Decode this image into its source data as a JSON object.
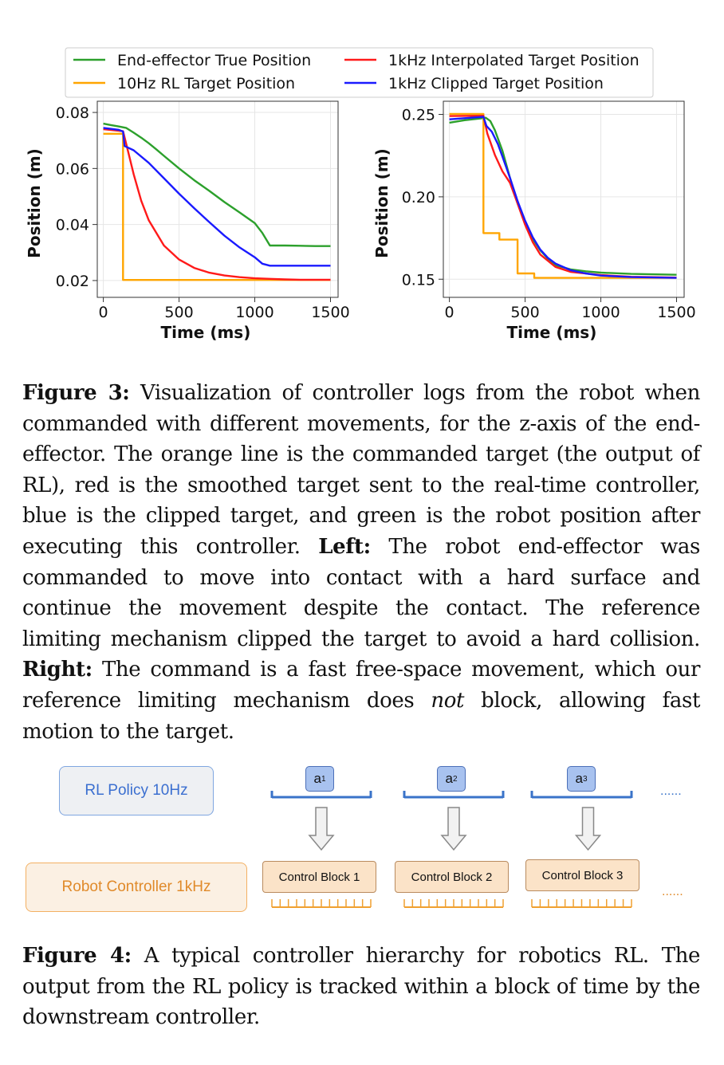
{
  "figure3": {
    "legend": [
      {
        "label": "End-effector True Position",
        "color": "#2ca02c"
      },
      {
        "label": "10Hz RL Target Position",
        "color": "#ffa500"
      },
      {
        "label": "1kHz Interpolated Target Position",
        "color": "#ff1a1a"
      },
      {
        "label": "1kHz Clipped Target Position",
        "color": "#1a1aff"
      }
    ],
    "caption": {
      "label": "Figure 3:",
      "text1": " Visualization of controller logs from the robot when commanded with different movements, for the z-axis of the end-effector. The orange line is the commanded target (the output of RL), red is the smoothed target sent to the real-time controller, blue is the clipped target, and green is the robot position after executing this controller. ",
      "left_label": "Left:",
      "text2": " The robot end-effector was commanded to move into contact with a hard surface and continue the movement despite the contact. The reference limiting mechanism clipped the target to avoid a hard collision. ",
      "right_label": "Right:",
      "text3": " The command is a fast free-space movement, which our reference limiting mechanism does ",
      "not": "not",
      "text4": " block, allowing fast motion to the target."
    }
  },
  "chart_data": [
    {
      "type": "line",
      "xlabel": "Time (ms)",
      "ylabel": "Position (m)",
      "xlim": [
        -40,
        1550
      ],
      "ylim": [
        0.014,
        0.084
      ],
      "xticks": [
        0,
        500,
        1000,
        1500
      ],
      "yticks": [
        0.02,
        0.04,
        0.06,
        0.08
      ],
      "ytick_labels": [
        "0.02",
        "0.04",
        "0.06",
        "0.08"
      ],
      "grid": true,
      "series": [
        {
          "name": "End-effector True Position",
          "color": "#2ca02c",
          "x": [
            0,
            50,
            100,
            150,
            200,
            250,
            300,
            350,
            400,
            500,
            600,
            700,
            800,
            900,
            1000,
            1050,
            1100,
            1200,
            1300,
            1400,
            1500
          ],
          "y": [
            0.076,
            0.0755,
            0.075,
            0.0745,
            0.0728,
            0.071,
            0.069,
            0.0668,
            0.0645,
            0.06,
            0.0558,
            0.052,
            0.048,
            0.0443,
            0.0405,
            0.037,
            0.0325,
            0.0325,
            0.0324,
            0.0323,
            0.0323
          ]
        },
        {
          "name": "10Hz RL Target Position",
          "color": "#ffa500",
          "x": [
            0,
            130,
            130,
            1500
          ],
          "y": [
            0.0724,
            0.0724,
            0.0202,
            0.0202
          ]
        },
        {
          "name": "1kHz Interpolated Target Position",
          "color": "#ff1a1a",
          "x": [
            0,
            130,
            150,
            200,
            250,
            300,
            400,
            500,
            600,
            700,
            800,
            900,
            1000,
            1100,
            1200,
            1300,
            1400,
            1500
          ],
          "y": [
            0.074,
            0.0733,
            0.069,
            0.058,
            0.0485,
            0.0415,
            0.0325,
            0.0275,
            0.0245,
            0.0228,
            0.0218,
            0.0212,
            0.0208,
            0.0206,
            0.0204,
            0.0203,
            0.0203,
            0.0203
          ]
        },
        {
          "name": "1kHz Clipped Target Position",
          "color": "#1a1aff",
          "x": [
            0,
            100,
            130,
            140,
            200,
            300,
            400,
            500,
            600,
            700,
            800,
            900,
            1000,
            1050,
            1100,
            1200,
            1300,
            1400,
            1500
          ],
          "y": [
            0.0745,
            0.0738,
            0.0732,
            0.068,
            0.0665,
            0.062,
            0.0565,
            0.051,
            0.0458,
            0.0408,
            0.036,
            0.0318,
            0.0283,
            0.026,
            0.0253,
            0.0253,
            0.0253,
            0.0253,
            0.0253
          ]
        }
      ]
    },
    {
      "type": "line",
      "xlabel": "Time (ms)",
      "ylabel": "Position (m)",
      "xlim": [
        -40,
        1550
      ],
      "ylim": [
        0.139,
        0.258
      ],
      "xticks": [
        0,
        500,
        1000,
        1500
      ],
      "yticks": [
        0.15,
        0.2,
        0.25
      ],
      "ytick_labels": [
        "0.15",
        "0.20",
        "0.25"
      ],
      "grid": true,
      "series": [
        {
          "name": "End-effector True Position",
          "color": "#2ca02c",
          "x": [
            0,
            100,
            200,
            240,
            270,
            300,
            350,
            400,
            450,
            500,
            550,
            600,
            650,
            700,
            800,
            900,
            1000,
            1200,
            1500
          ],
          "y": [
            0.245,
            0.2465,
            0.2475,
            0.248,
            0.246,
            0.2405,
            0.228,
            0.2115,
            0.196,
            0.184,
            0.1745,
            0.1675,
            0.1625,
            0.1585,
            0.156,
            0.1548,
            0.154,
            0.1532,
            0.1527
          ]
        },
        {
          "name": "10Hz RL Target Position",
          "color": "#ffa500",
          "x": [
            0,
            225,
            225,
            330,
            330,
            450,
            450,
            560,
            560,
            1500
          ],
          "y": [
            0.2503,
            0.2503,
            0.178,
            0.178,
            0.174,
            0.174,
            0.1535,
            0.1535,
            0.1508,
            0.1508
          ]
        },
        {
          "name": "1kHz Interpolated Target Position",
          "color": "#ff1a1a",
          "x": [
            0,
            225,
            250,
            300,
            350,
            400,
            450,
            500,
            550,
            600,
            700,
            800,
            1000,
            1200,
            1500
          ],
          "y": [
            0.249,
            0.2492,
            0.2385,
            0.2255,
            0.2155,
            0.2085,
            0.196,
            0.183,
            0.1725,
            0.165,
            0.1575,
            0.1545,
            0.1525,
            0.1515,
            0.151
          ]
        },
        {
          "name": "1kHz Clipped Target Position",
          "color": "#1a1aff",
          "x": [
            0,
            225,
            245,
            280,
            320,
            350,
            400,
            450,
            500,
            550,
            600,
            650,
            700,
            800,
            900,
            1000,
            1200,
            1500
          ],
          "y": [
            0.247,
            0.2485,
            0.243,
            0.2395,
            0.232,
            0.2245,
            0.2115,
            0.1975,
            0.1855,
            0.1755,
            0.168,
            0.163,
            0.1595,
            0.1555,
            0.1535,
            0.1522,
            0.1513,
            0.1508
          ]
        }
      ]
    }
  ],
  "figure4": {
    "policy_label": "RL Policy 10Hz",
    "controller_label": "Robot Controller 1kHz",
    "actions": [
      {
        "letter": "a",
        "sub": "1"
      },
      {
        "letter": "a",
        "sub": "2"
      },
      {
        "letter": "a",
        "sub": "3"
      }
    ],
    "blocks": [
      "Control Block 1",
      "Control Block 2",
      "Control Block 3"
    ],
    "ellipsis_top": "......",
    "ellipsis_bottom": "......",
    "colors": {
      "action_line": "#3a73c9",
      "tick_line": "#f0a030",
      "arrow": "#888888"
    },
    "caption": {
      "label": "Figure 4:",
      "text": " A typical controller hierarchy for robotics RL. The output from the RL policy is tracked within a block of time by the downstream controller."
    }
  }
}
